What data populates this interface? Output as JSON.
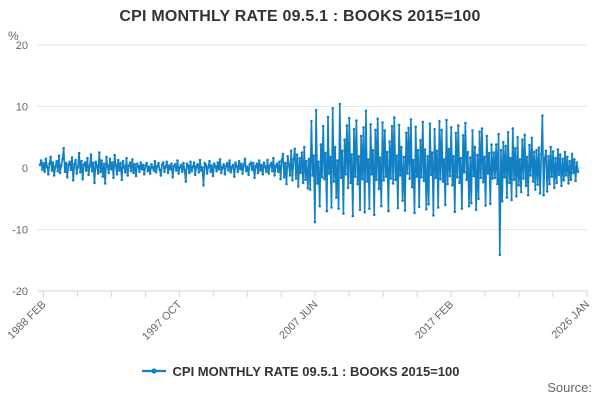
{
  "title": "CPI MONTHLY RATE 09.5.1 : BOOKS 2015=100",
  "unit_label": "%",
  "source_label": "Source:",
  "legend": {
    "label": "CPI MONTHLY RATE 09.5.1 : BOOKS 2015=100"
  },
  "colors": {
    "line": "#1380c4",
    "grid": "#e6e6e6",
    "axis": "#ccd6eb",
    "tick_text": "#666666",
    "title_text": "#333333"
  },
  "chart_data": {
    "type": "line",
    "title": "CPI MONTHLY RATE 09.5.1 : BOOKS 2015=100",
    "xlabel": "",
    "ylabel": "%",
    "ylim": [
      -20,
      20
    ],
    "y_ticks": [
      20,
      10,
      0,
      -10,
      -20
    ],
    "x_tick_count": 17,
    "x_tick_labels": [
      "1988 FEB",
      "1997 OCT",
      "2007 JUN",
      "2017 FEB",
      "2026 JAN"
    ],
    "labeled_tick_interval": 4,
    "grid": true,
    "legend_position": "bottom",
    "series_name": "CPI MONTHLY RATE 09.5.1 : BOOKS 2015=100",
    "frequency": "monthly",
    "x_start": "1988 FEB",
    "x_end": "2025 DEC",
    "values": [
      0.5,
      1.2,
      -0.3,
      0.8,
      -0.6,
      1.5,
      0.2,
      -1.0,
      0.7,
      1.8,
      -0.4,
      0.9,
      -1.2,
      0.3,
      1.1,
      -0.5,
      2.0,
      -0.8,
      0.4,
      1.4,
      3.2,
      -0.6,
      0.8,
      -1.5,
      0.5,
      1.0,
      -0.3,
      1.7,
      -2.0,
      0.6,
      1.3,
      -0.9,
      0.2,
      2.4,
      -0.7,
      1.1,
      -1.8,
      0.5,
      0.9,
      -0.4,
      1.6,
      -1.1,
      0.3,
      2.2,
      -0.5,
      0.8,
      -2.4,
      1.0,
      0.4,
      -0.9,
      2.5,
      -0.6,
      1.2,
      -1.4,
      0.7,
      -2.5,
      1.8,
      0.3,
      -0.8,
      1.5,
      -0.2,
      0.9,
      -1.6,
      2.1,
      0.5,
      -1.0,
      1.3,
      -0.4,
      0.8,
      -1.9,
      1.1,
      0.2,
      -0.7,
      1.6,
      -1.2,
      0.4,
      0.9,
      -0.5,
      1.4,
      -0.8,
      0.6,
      -1.3,
      0.7,
      0.3,
      -0.6,
      0.9,
      -0.2,
      0.5,
      -1.0,
      0.4,
      0.8,
      -0.5,
      0.2,
      -0.9,
      0.6,
      0.1,
      -0.4,
      1.1,
      -0.7,
      0.3,
      0.8,
      -0.3,
      -1.2,
      0.5,
      0.9,
      -0.6,
      0.2,
      1.0,
      -0.8,
      0.4,
      -0.2,
      0.7,
      -1.5,
      0.3,
      0.6,
      -0.4,
      1.2,
      -0.9,
      0.1,
      0.5,
      -0.6,
      0.8,
      -0.3,
      -2.2,
      0.7,
      0.4,
      -0.8,
      1.0,
      -0.5,
      0.2,
      0.9,
      -1.1,
      0.3,
      0.6,
      -0.7,
      1.3,
      -0.4,
      0.1,
      -2.8,
      0.8,
      0.5,
      -0.9,
      0.2,
      1.1,
      -0.6,
      0.4,
      -1.3,
      0.7,
      0.3,
      -0.5,
      0.9,
      -0.2,
      1.4,
      -0.8,
      0.1,
      0.6,
      -1.0,
      0.3,
      0.8,
      -0.4,
      1.2,
      -0.7,
      0.2,
      0.5,
      -1.4,
      0.9,
      0.3,
      -0.6,
      1.1,
      -0.2,
      0.7,
      -0.9,
      0.4,
      1.5,
      -0.5,
      0.2,
      -1.1,
      0.6,
      0.9,
      -0.3,
      0.8,
      -1.6,
      0.3,
      0.7,
      -0.8,
      1.2,
      -0.4,
      0.5,
      -1.0,
      0.9,
      0.2,
      -0.6,
      1.3,
      -0.9,
      0.4,
      0.8,
      -0.5,
      1.6,
      -1.2,
      0.3,
      0.7,
      -0.6,
      1.0,
      -1.8,
      1.2,
      2.3,
      -1.5,
      0.8,
      -2.6,
      1.9,
      0.5,
      -1.2,
      2.8,
      -2.0,
      1.4,
      3.1,
      -1.7,
      2.2,
      -3.0,
      1.6,
      -0.8,
      2.5,
      -2.4,
      3.4,
      -1.9,
      1.1,
      -3.3,
      1.5,
      -3.5,
      7.6,
      -1.2,
      2.0,
      -8.8,
      9.4,
      -2.5,
      1.0,
      -6.2,
      3.8,
      -1.5,
      6.8,
      -1.8,
      2.4,
      -7.0,
      8.3,
      -0.9,
      1.8,
      -6.4,
      9.7,
      -2.2,
      3.4,
      -4.8,
      1.2,
      -6.6,
      10.4,
      -1.6,
      2.8,
      -7.4,
      4.6,
      -1.0,
      6.9,
      -3.2,
      8.1,
      -2.4,
      2.2,
      -7.8,
      6.3,
      -1.4,
      7.7,
      -2.6,
      1.9,
      -6.8,
      5.2,
      -1.8,
      6.6,
      -7.2,
      9.3,
      -2.2,
      1.4,
      -6.6,
      7.1,
      -1.0,
      2.9,
      -7.6,
      6.2,
      -1.9,
      8.0,
      -3.4,
      1.7,
      -6.2,
      7.4,
      -2.0,
      6.1,
      -1.4,
      2.6,
      -7.0,
      4.3,
      -1.7,
      6.8,
      -2.5,
      8.2,
      -1.9,
      2.0,
      -6.5,
      7.0,
      -1.2,
      3.4,
      -5.3,
      1.8,
      -6.9,
      5.7,
      -0.9,
      6.5,
      -1.7,
      7.9,
      -3.1,
      1.3,
      -7.3,
      6.7,
      -1.4,
      2.9,
      -6.3,
      4.5,
      -1.5,
      7.5,
      -2.1,
      3.0,
      -6.7,
      1.9,
      -5.9,
      7.2,
      -1.1,
      2.5,
      -7.7,
      6.3,
      -1.6,
      2.8,
      -6.4,
      7.6,
      -1.8,
      6.2,
      -2.2,
      1.4,
      -6.0,
      7.8,
      -2.6,
      3.1,
      -1.3,
      6.6,
      -2.8,
      1.9,
      -7.1,
      5.7,
      -1.5,
      6.9,
      -2.4,
      1.6,
      -6.6,
      5.3,
      -0.7,
      7.3,
      -1.9,
      2.6,
      -6.2,
      1.7,
      -5.7,
      6.1,
      -1.3,
      3.4,
      -6.8,
      2.1,
      -5.0,
      5.9,
      -1.6,
      6.4,
      -2.3,
      1.8,
      -6.1,
      5.2,
      -0.9,
      2.4,
      -5.8,
      3.8,
      -1.7,
      2.5,
      -1.6,
      3.8,
      -2.6,
      5.5,
      -14.1,
      2.9,
      -5.4,
      4.2,
      -1.5,
      3.6,
      -4.8,
      5.8,
      -2.4,
      1.6,
      -5.2,
      6.4,
      -1.9,
      3.2,
      -4.6,
      5.0,
      -2.8,
      1.4,
      -3.9,
      4.6,
      -1.7,
      5.4,
      -2.9,
      1.8,
      -4.4,
      3.7,
      -1.2,
      4.9,
      -2.2,
      2.6,
      -3.5,
      2.9,
      -2.7,
      3.3,
      -4.1,
      2.2,
      8.5,
      -4.4,
      1.6,
      2.8,
      -3.8,
      1.9,
      -2.6,
      3.4,
      -1.4,
      2.7,
      -3.2,
      1.6,
      -2.4,
      3.0,
      -1.1,
      2.2,
      -2.9,
      1.5,
      -2.0,
      2.6,
      -1.2,
      1.8,
      -2.5,
      1.1,
      -1.9,
      2.3,
      -0.8,
      1.4,
      -2.1,
      0.9,
      -0.6
    ]
  }
}
